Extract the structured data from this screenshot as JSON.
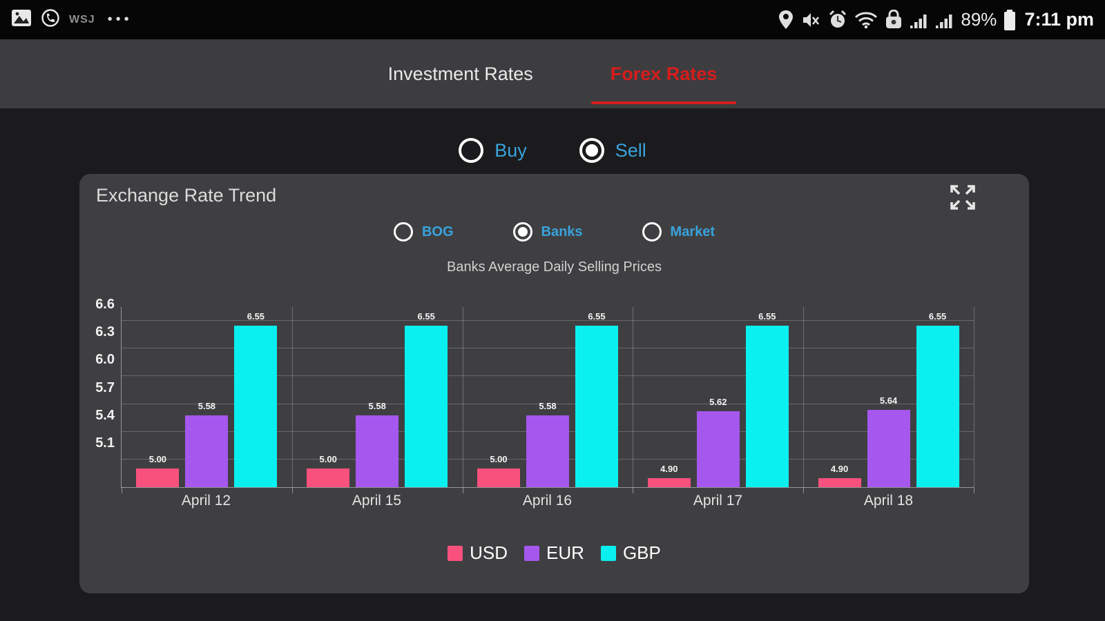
{
  "status_bar": {
    "time": "7:11 pm",
    "battery_percent": "89%",
    "wsj_label": "WSJ",
    "more_label": "•••",
    "left_icon_names": [
      "screenshot-icon",
      "whatsapp-icon"
    ],
    "right_icon_names": [
      "location-icon",
      "mute-icon",
      "alarm-icon",
      "wifi-icon",
      "vpn-lock-icon",
      "signal-sim1-icon",
      "signal-sim2-icon",
      "battery-icon"
    ]
  },
  "tabs": [
    {
      "label": "Investment Rates",
      "active": false
    },
    {
      "label": "Forex Rates",
      "active": true
    }
  ],
  "trade_toggle": {
    "options": [
      {
        "label": "Buy",
        "selected": false
      },
      {
        "label": "Sell",
        "selected": true
      }
    ]
  },
  "card": {
    "title": "Exchange Rate Trend",
    "expand_icon": "fullscreen-expand",
    "source_toggle": [
      {
        "label": "BOG",
        "selected": false
      },
      {
        "label": "Banks",
        "selected": true
      },
      {
        "label": "Market",
        "selected": false
      }
    ],
    "subtitle": "Banks Average Daily Selling Prices"
  },
  "chart_data": {
    "type": "bar",
    "title": "Banks Average Daily Selling Prices",
    "categories": [
      "April 12",
      "April 15",
      "April 16",
      "April 17",
      "April 18"
    ],
    "series": [
      {
        "name": "USD",
        "color": "#f9517e",
        "values": [
          5.0,
          5.0,
          5.0,
          4.9,
          4.9
        ]
      },
      {
        "name": "EUR",
        "color": "#a557ee",
        "values": [
          5.58,
          5.58,
          5.58,
          5.62,
          5.64
        ]
      },
      {
        "name": "GBP",
        "color": "#0af0f0",
        "values": [
          6.55,
          6.55,
          6.55,
          6.55,
          6.55
        ]
      }
    ],
    "yticks": [
      5.1,
      5.4,
      5.7,
      6.0,
      6.3,
      6.6
    ],
    "ylim": [
      4.8,
      6.75
    ],
    "grid": true,
    "legend_position": "bottom",
    "xlabel": "",
    "ylabel": ""
  },
  "colors": {
    "accent_red": "#d61c1c",
    "radio_label_blue": "#39a3dc",
    "card_bg": "#3f3f42",
    "page_bg": "#1b1b1d",
    "status_bar_bg": "#060606",
    "tab_bar_bg": "#3d3d40"
  }
}
